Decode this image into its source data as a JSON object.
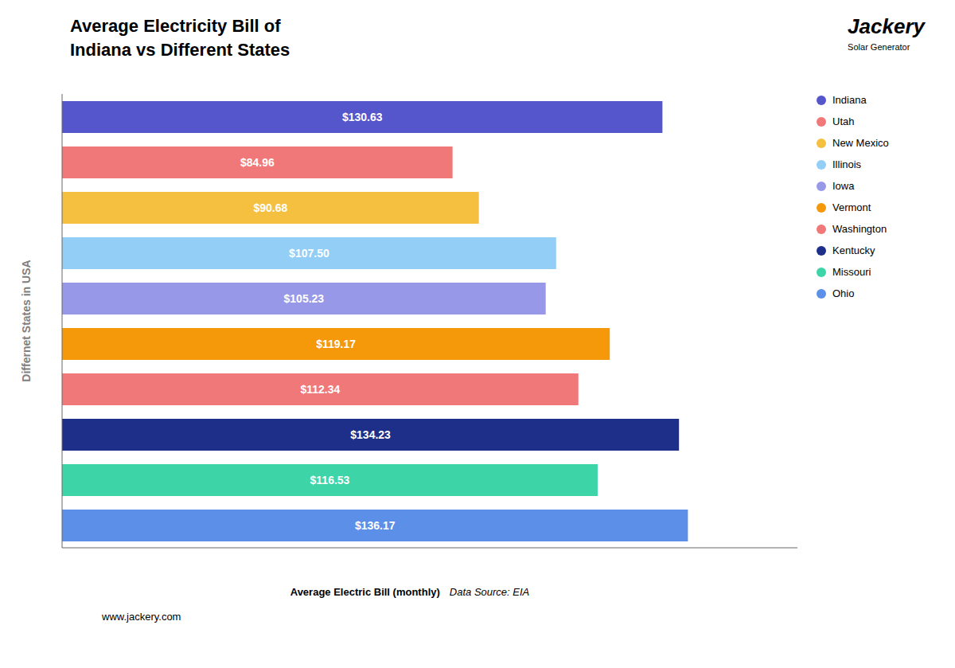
{
  "chart_data": {
    "type": "bar",
    "orientation": "horizontal",
    "title": "Average Electricity Bill of\nIndiana vs Different States",
    "x_label": "Average Electric Bill (monthly)",
    "y_label": "Differnet States in USA",
    "annotations": [
      "Data Source: EIA",
      "www.jackery.com",
      "Jackery",
      "Solar Generator"
    ],
    "categories": [
      "Indiana",
      "Utah",
      "New Mexico",
      "Illinois",
      "Iowa",
      "Vermont",
      "Washington",
      "Kentucky",
      "Missouri",
      "Ohio"
    ],
    "values": [
      130.63,
      84.96,
      90.68,
      107.5,
      105.23,
      119.17,
      112.34,
      134.23,
      116.53,
      136.17
    ],
    "value_labels": [
      "$130.63",
      "$84.96",
      "$90.68",
      "$107.50",
      "$105.23",
      "$119.17",
      "$112.34",
      "$134.23",
      "$116.53",
      "$136.17"
    ],
    "colors": [
      "#5555cc",
      "#f07878",
      "#f5c040",
      "#92cef5",
      "#9898e8",
      "#f5980a",
      "#f07878",
      "#1e2f8a",
      "#3dd4a8",
      "#5b8fe8"
    ],
    "data_labels": true,
    "xlim": [
      0,
      160
    ],
    "xticks": [],
    "tick_labels": false,
    "grid": false,
    "legend": "right"
  }
}
